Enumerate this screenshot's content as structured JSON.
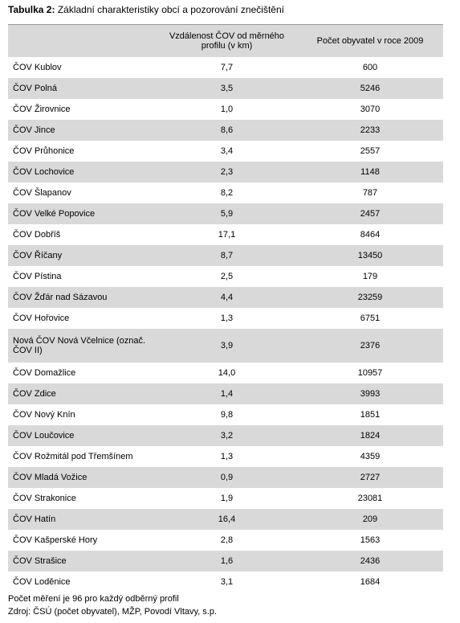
{
  "header": {
    "label": "Tabulka 2:",
    "title": "Základní charakteristiky obcí a pozorování znečištění"
  },
  "table": {
    "columns": [
      "",
      "Vzdálenost ČOV od měrného profilu (v km)",
      "Počet obyvatel v roce 2009"
    ],
    "rows": [
      [
        "ČOV Kublov",
        "7,7",
        "600"
      ],
      [
        "ČOV Polná",
        "3,5",
        "5246"
      ],
      [
        "ČOV Žirovnice",
        "1,0",
        "3070"
      ],
      [
        "ČOV Jince",
        "8,6",
        "2233"
      ],
      [
        "ČOV Průhonice",
        "3,4",
        "2557"
      ],
      [
        "ČOV Lochovice",
        "2,3",
        "1148"
      ],
      [
        "ČOV Šlapanov",
        "8,2",
        "787"
      ],
      [
        "ČOV Velké Popovice",
        "5,9",
        "2457"
      ],
      [
        "ČOV Dobříš",
        "17,1",
        "8464"
      ],
      [
        "ČOV Říčany",
        "8,7",
        "13450"
      ],
      [
        "ČOV Pístina",
        "2,5",
        "179"
      ],
      [
        "ČOV Žďár nad Sázavou",
        "4,4",
        "23259"
      ],
      [
        "ČOV Hořovice",
        "1,3",
        "6751"
      ],
      [
        "Nová ČOV Nová Včelnice (označ. ČOV II)",
        "3,9",
        "2376"
      ],
      [
        "ČOV Domažlice",
        "14,0",
        "10957"
      ],
      [
        "ČOV Zdice",
        "1,4",
        "3993"
      ],
      [
        "ČOV Nový Knín",
        "9,8",
        "1851"
      ],
      [
        "ČOV Loučovice",
        "3,2",
        "1824"
      ],
      [
        "ČOV Rožmitál pod Třemšínem",
        "1,3",
        "4359"
      ],
      [
        "ČOV Mladá Vožice",
        "0,9",
        "2727"
      ],
      [
        "ČOV Strakonice",
        "1,9",
        "23081"
      ],
      [
        "ČOV Hatín",
        "16,4",
        "209"
      ],
      [
        "ČOV Kašperské Hory",
        "2,8",
        "1563"
      ],
      [
        "ČOV Strašice",
        "1,6",
        "2436"
      ],
      [
        "ČOV Loděnice",
        "3,1",
        "1684"
      ]
    ]
  },
  "footer": [
    "Počet měření je 96 pro každý odběrný profil",
    "Zdroj: ČSÚ (počet obyvatel), MŽP, Povodí Vltavy, s.p."
  ]
}
